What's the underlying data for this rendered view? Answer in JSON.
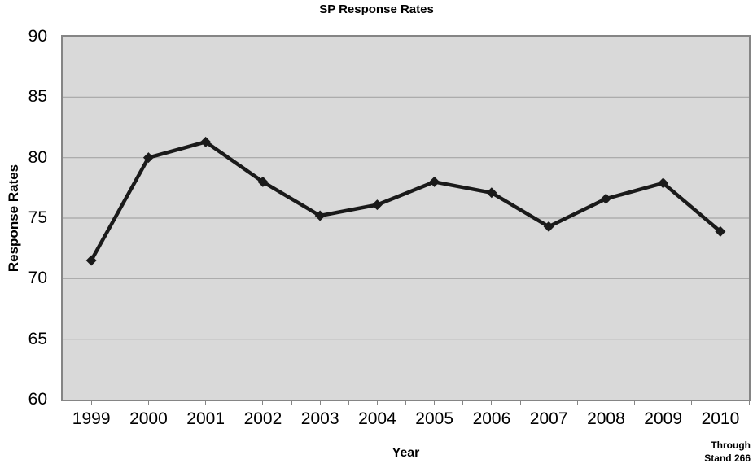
{
  "chart_data": {
    "type": "line",
    "title": "SP Response Rates",
    "xlabel": "Year",
    "ylabel": "Response Rates",
    "categories": [
      "1999",
      "2000",
      "2001",
      "2002",
      "2003",
      "2004",
      "2005",
      "2006",
      "2007",
      "2008",
      "2009",
      "2010"
    ],
    "values": [
      71.5,
      80.0,
      81.3,
      78.0,
      75.2,
      76.1,
      78.0,
      77.1,
      74.3,
      76.6,
      77.9,
      73.9
    ],
    "ylim": [
      60,
      90
    ],
    "yticks": [
      60,
      65,
      70,
      75,
      80,
      85,
      90
    ],
    "grid": "horizontal",
    "legend": "none",
    "marker": "diamond"
  },
  "annotation": {
    "line1": "Through",
    "line2": "Stand 266"
  },
  "colors": {
    "background": "#ffffff",
    "plot_fill": "#d9d9d9",
    "gridline": "#a6a6a6",
    "axis_border": "#858585",
    "series": "#1a1a1a",
    "text": "#000000"
  }
}
